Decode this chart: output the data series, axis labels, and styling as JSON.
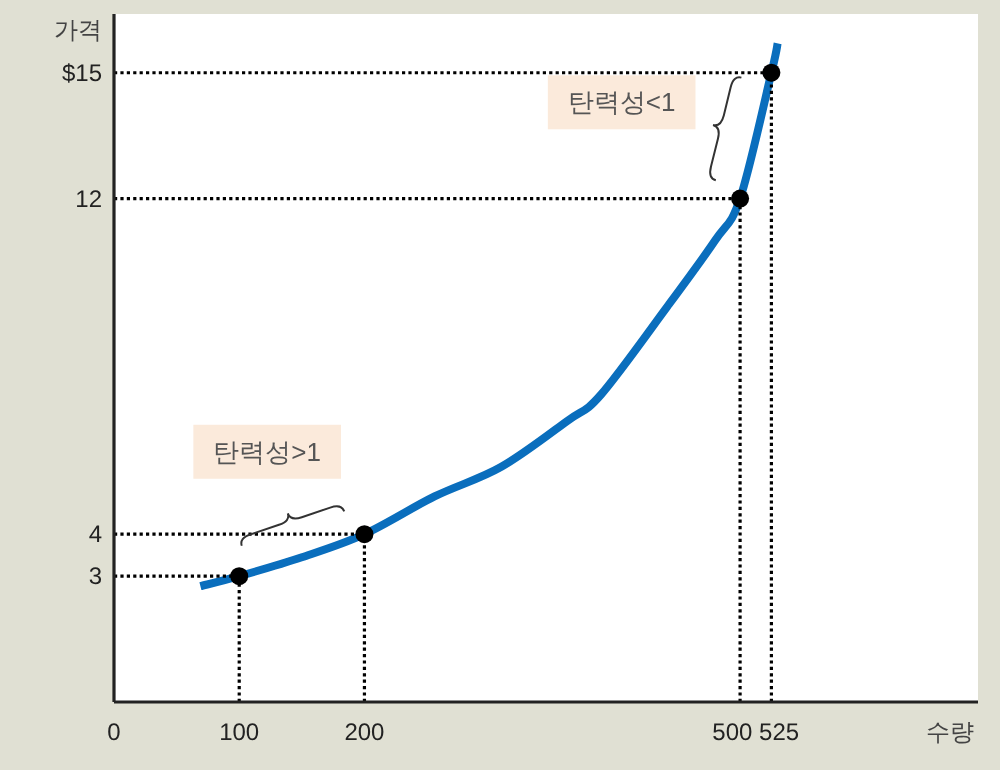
{
  "chart_data": {
    "type": "line",
    "xlabel": "수량",
    "ylabel": "가격",
    "xlim": [
      0,
      690
    ],
    "ref_lines": [
      {
        "axis": "x",
        "value": 100,
        "color": "#000000",
        "line_style": "dotted"
      },
      {
        "axis": "x",
        "value": 200,
        "color": "#000000",
        "line_style": "dotted"
      },
      {
        "axis": "x",
        "value": 500,
        "color": "#000000",
        "line_style": "dotted"
      },
      {
        "axis": "x",
        "value": 525,
        "color": "#000000",
        "line_style": "dotted"
      },
      {
        "axis": "y",
        "value": 3,
        "color": "#000000",
        "line_style": "dotted"
      },
      {
        "axis": "y",
        "value": 4,
        "color": "#000000",
        "line_style": "dotted"
      },
      {
        "axis": "y",
        "value": 12,
        "color": "#000000",
        "line_style": "dotted"
      },
      {
        "axis": "y",
        "value": 15,
        "color": "#000000",
        "line_style": "dotted"
      }
    ],
    "ylim": [
      0,
      16.4
    ],
    "xticks": [
      0,
      100,
      200,
      500,
      525
    ],
    "yticks": [
      3,
      4,
      12,
      {
        "value": 15,
        "label": "$15"
      }
    ],
    "series": [
      {
        "color": "#0a6ebd",
        "marker": "none",
        "x": [
          69,
          100,
          150,
          200,
          256,
          309,
          362,
          389,
          442,
          480,
          500,
          525,
          530
        ],
        "values": [
          2.76,
          3,
          3.45,
          4,
          4.9,
          5.6,
          6.7,
          7.33,
          9.43,
          11,
          12,
          15,
          15.7
        ]
      },
      {
        "type": "scatter",
        "color": "#000000",
        "marker": "circle",
        "x": [
          100,
          200,
          500,
          525
        ],
        "values": [
          3,
          4,
          12,
          15
        ]
      }
    ],
    "annotations": [
      "탄력성>1",
      "탄력성<1"
    ]
  }
}
